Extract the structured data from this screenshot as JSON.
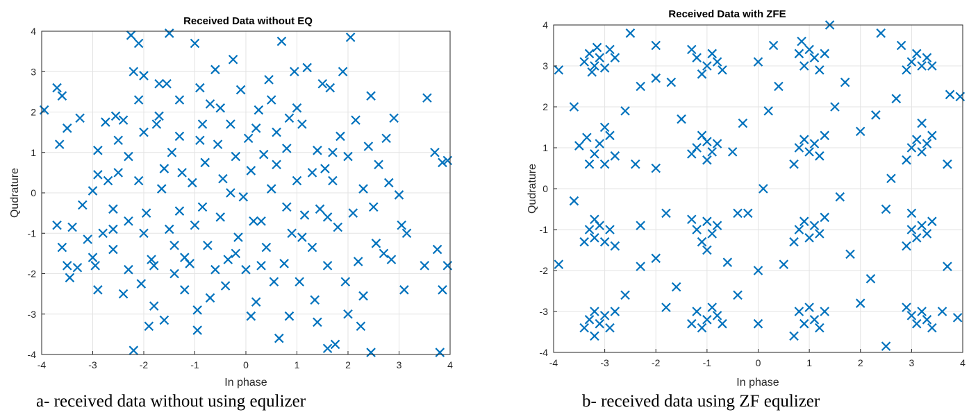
{
  "chart_data": [
    {
      "type": "scatter",
      "title": "Received Data without EQ",
      "xlabel": "In phase",
      "ylabel": "Qudrature",
      "xlim": [
        -4,
        4
      ],
      "ylim": [
        -4,
        4
      ],
      "xticks": [
        "-4",
        "-3",
        "-2",
        "-1",
        "0",
        "1",
        "2",
        "3",
        "4"
      ],
      "yticks": [
        "-4",
        "-3",
        "-2",
        "-1",
        "0",
        "1",
        "2",
        "3",
        "4"
      ],
      "grid": true,
      "marker": "x",
      "color": "#0072BD",
      "points": [
        [
          -3.95,
          2.05
        ],
        [
          -3.7,
          2.6
        ],
        [
          -3.6,
          2.4
        ],
        [
          -3.5,
          1.6
        ],
        [
          -3.65,
          1.2
        ],
        [
          -3.7,
          -0.8
        ],
        [
          -3.6,
          -1.35
        ],
        [
          -3.5,
          -1.8
        ],
        [
          -3.45,
          -2.1
        ],
        [
          -3.4,
          -0.85
        ],
        [
          -3.3,
          -1.85
        ],
        [
          -3.25,
          1.85
        ],
        [
          -3.2,
          -0.3
        ],
        [
          -3.1,
          -1.15
        ],
        [
          -3.0,
          0.05
        ],
        [
          -2.95,
          -1.8
        ],
        [
          -2.9,
          -2.4
        ],
        [
          -2.9,
          1.05
        ],
        [
          -2.8,
          -1.0
        ],
        [
          -2.75,
          1.75
        ],
        [
          -2.7,
          0.3
        ],
        [
          -2.6,
          -0.4
        ],
        [
          -2.6,
          -1.4
        ],
        [
          -2.55,
          1.9
        ],
        [
          -2.5,
          0.5
        ],
        [
          -2.5,
          1.3
        ],
        [
          -2.4,
          -2.5
        ],
        [
          -2.3,
          -1.9
        ],
        [
          -2.3,
          -0.7
        ],
        [
          -2.3,
          0.9
        ],
        [
          -2.25,
          3.9
        ],
        [
          -2.2,
          3.0
        ],
        [
          -2.2,
          -3.9
        ],
        [
          -2.1,
          3.7
        ],
        [
          -2.05,
          -2.25
        ],
        [
          -2.0,
          2.9
        ],
        [
          -2.0,
          1.5
        ],
        [
          -1.95,
          -0.5
        ],
        [
          -1.9,
          -3.3
        ],
        [
          -1.85,
          -1.65
        ],
        [
          -1.8,
          -2.8
        ],
        [
          -1.75,
          1.7
        ],
        [
          -1.7,
          2.7
        ],
        [
          -1.65,
          0.1
        ],
        [
          -1.6,
          -3.15
        ],
        [
          -1.55,
          2.7
        ],
        [
          -1.5,
          3.95
        ],
        [
          -1.45,
          1.0
        ],
        [
          -1.4,
          -1.3
        ],
        [
          -1.3,
          -0.45
        ],
        [
          -1.3,
          1.4
        ],
        [
          -1.25,
          0.5
        ],
        [
          -1.2,
          -2.4
        ],
        [
          -1.1,
          -1.75
        ],
        [
          -1.05,
          0.25
        ],
        [
          -1.0,
          3.7
        ],
        [
          -0.95,
          -3.4
        ],
        [
          -0.95,
          -2.9
        ],
        [
          -0.9,
          2.6
        ],
        [
          -0.85,
          1.7
        ],
        [
          -0.85,
          -0.35
        ],
        [
          -0.8,
          0.75
        ],
        [
          -0.75,
          -1.3
        ],
        [
          -0.7,
          2.2
        ],
        [
          -0.6,
          3.05
        ],
        [
          -0.55,
          1.2
        ],
        [
          -0.5,
          -0.6
        ],
        [
          -0.45,
          0.35
        ],
        [
          -0.4,
          -2.3
        ],
        [
          -0.35,
          -1.65
        ],
        [
          -0.3,
          1.7
        ],
        [
          -0.25,
          3.3
        ],
        [
          -0.2,
          0.9
        ],
        [
          -0.15,
          -1.1
        ],
        [
          -0.1,
          2.55
        ],
        [
          -0.05,
          -0.1
        ],
        [
          0.0,
          -1.9
        ],
        [
          0.05,
          1.35
        ],
        [
          0.1,
          0.55
        ],
        [
          0.15,
          -0.7
        ],
        [
          0.2,
          -2.7
        ],
        [
          0.25,
          2.05
        ],
        [
          0.3,
          -0.7
        ],
        [
          0.35,
          0.95
        ],
        [
          0.4,
          -1.35
        ],
        [
          0.45,
          2.8
        ],
        [
          0.5,
          0.1
        ],
        [
          0.55,
          -2.2
        ],
        [
          0.6,
          1.5
        ],
        [
          0.65,
          -3.6
        ],
        [
          0.7,
          3.75
        ],
        [
          0.75,
          -1.75
        ],
        [
          0.8,
          -0.35
        ],
        [
          0.85,
          -3.05
        ],
        [
          0.85,
          1.85
        ],
        [
          0.9,
          -1.0
        ],
        [
          0.95,
          3.0
        ],
        [
          1.0,
          0.3
        ],
        [
          1.05,
          -2.2
        ],
        [
          1.1,
          1.7
        ],
        [
          1.15,
          -0.55
        ],
        [
          1.2,
          3.1
        ],
        [
          1.3,
          -1.35
        ],
        [
          1.35,
          -2.65
        ],
        [
          1.4,
          1.05
        ],
        [
          1.45,
          -0.4
        ],
        [
          1.5,
          2.7
        ],
        [
          1.55,
          0.6
        ],
        [
          1.6,
          -3.85
        ],
        [
          1.6,
          -1.8
        ],
        [
          1.65,
          2.6
        ],
        [
          1.7,
          0.3
        ],
        [
          1.75,
          -3.75
        ],
        [
          1.8,
          -0.85
        ],
        [
          1.85,
          1.4
        ],
        [
          1.9,
          3.0
        ],
        [
          1.95,
          -2.2
        ],
        [
          2.0,
          0.9
        ],
        [
          2.05,
          3.85
        ],
        [
          2.1,
          -0.5
        ],
        [
          2.15,
          1.8
        ],
        [
          2.2,
          -1.7
        ],
        [
          2.25,
          -3.3
        ],
        [
          2.3,
          0.1
        ],
        [
          2.3,
          -2.55
        ],
        [
          2.4,
          1.15
        ],
        [
          2.45,
          -3.95
        ],
        [
          2.45,
          2.4
        ],
        [
          2.55,
          -1.25
        ],
        [
          2.6,
          0.7
        ],
        [
          2.7,
          -1.5
        ],
        [
          2.75,
          1.35
        ],
        [
          2.85,
          -1.65
        ],
        [
          2.9,
          1.85
        ],
        [
          3.0,
          -0.05
        ],
        [
          3.05,
          -0.8
        ],
        [
          3.1,
          -2.4
        ],
        [
          3.15,
          -1.0
        ],
        [
          3.5,
          -1.8
        ],
        [
          3.55,
          2.35
        ],
        [
          3.7,
          1.0
        ],
        [
          3.75,
          -1.4
        ],
        [
          3.8,
          -3.95
        ],
        [
          3.85,
          0.75
        ],
        [
          3.85,
          -2.4
        ],
        [
          3.95,
          0.8
        ],
        [
          3.95,
          -1.8
        ],
        [
          -2.0,
          -1.0
        ],
        [
          -1.8,
          -1.8
        ],
        [
          -1.5,
          -0.9
        ],
        [
          -1.2,
          -1.6
        ],
        [
          -1.6,
          0.6
        ],
        [
          -2.1,
          0.3
        ],
        [
          -1.0,
          -0.8
        ],
        [
          -0.6,
          -1.9
        ],
        [
          -0.9,
          1.3
        ],
        [
          -0.3,
          0.0
        ],
        [
          0.2,
          1.6
        ],
        [
          0.6,
          0.7
        ],
        [
          1.1,
          -1.1
        ],
        [
          1.3,
          0.5
        ],
        [
          0.8,
          1.1
        ],
        [
          1.7,
          1.0
        ],
        [
          1.6,
          -0.6
        ],
        [
          -0.2,
          -1.5
        ],
        [
          0.3,
          -1.8
        ],
        [
          -1.4,
          -2.0
        ],
        [
          -2.4,
          1.8
        ],
        [
          -2.1,
          2.3
        ],
        [
          -0.5,
          2.1
        ],
        [
          0.5,
          2.3
        ],
        [
          1.0,
          2.1
        ],
        [
          -3.0,
          -1.6
        ],
        [
          -2.6,
          -0.9
        ],
        [
          -2.9,
          0.45
        ],
        [
          2.8,
          0.25
        ],
        [
          2.5,
          -0.35
        ],
        [
          -1.7,
          1.9
        ],
        [
          -1.3,
          2.3
        ],
        [
          0.1,
          -3.05
        ],
        [
          -0.7,
          -2.6
        ],
        [
          1.4,
          -3.2
        ],
        [
          2.0,
          -3.0
        ]
      ]
    },
    {
      "type": "scatter",
      "title": "Received Data with ZFE",
      "xlabel": "In phase",
      "ylabel": "Qudrature",
      "xlim": [
        -4,
        4
      ],
      "ylim": [
        -4,
        4
      ],
      "xticks": [
        "-4",
        "-3",
        "-2",
        "-1",
        "0",
        "1",
        "2",
        "3",
        "4"
      ],
      "yticks": [
        "-4",
        "-3",
        "-2",
        "-1",
        "0",
        "1",
        "2",
        "3",
        "4"
      ],
      "grid": true,
      "marker": "x",
      "color": "#0072BD",
      "points": [
        [
          -3.9,
          2.9
        ],
        [
          -3.9,
          -1.85
        ],
        [
          -3.5,
          1.05
        ],
        [
          -3.4,
          3.1
        ],
        [
          -3.3,
          3.3
        ],
        [
          -3.2,
          3.0
        ],
        [
          -3.1,
          3.2
        ],
        [
          -3.0,
          2.95
        ],
        [
          -2.9,
          3.4
        ],
        [
          -2.8,
          3.2
        ],
        [
          -3.25,
          2.85
        ],
        [
          -3.15,
          3.45
        ],
        [
          -3.35,
          1.25
        ],
        [
          -3.2,
          0.85
        ],
        [
          -3.1,
          1.1
        ],
        [
          -3.0,
          0.6
        ],
        [
          -2.9,
          1.3
        ],
        [
          -3.3,
          0.6
        ],
        [
          -3.0,
          1.5
        ],
        [
          -2.8,
          0.8
        ],
        [
          -3.3,
          -1.0
        ],
        [
          -3.2,
          -1.2
        ],
        [
          -3.1,
          -0.9
        ],
        [
          -3.0,
          -1.3
        ],
        [
          -2.9,
          -1.0
        ],
        [
          -3.4,
          -1.3
        ],
        [
          -2.8,
          -1.4
        ],
        [
          -3.2,
          -0.75
        ],
        [
          -3.3,
          -3.2
        ],
        [
          -3.2,
          -3.0
        ],
        [
          -3.1,
          -3.3
        ],
        [
          -3.0,
          -3.1
        ],
        [
          -2.9,
          -3.4
        ],
        [
          -3.4,
          -3.4
        ],
        [
          -2.8,
          -3.0
        ],
        [
          -3.2,
          -3.6
        ],
        [
          -1.2,
          3.2
        ],
        [
          -1.0,
          3.0
        ],
        [
          -0.9,
          3.3
        ],
        [
          -1.1,
          2.8
        ],
        [
          -0.8,
          3.1
        ],
        [
          -1.3,
          3.4
        ],
        [
          -0.7,
          2.9
        ],
        [
          -1.2,
          1.0
        ],
        [
          -1.0,
          1.15
        ],
        [
          -0.9,
          0.9
        ],
        [
          -1.1,
          1.3
        ],
        [
          -0.8,
          1.1
        ],
        [
          -1.3,
          0.85
        ],
        [
          -1.0,
          0.7
        ],
        [
          -1.2,
          -1.0
        ],
        [
          -1.0,
          -0.8
        ],
        [
          -0.9,
          -1.1
        ],
        [
          -1.1,
          -1.3
        ],
        [
          -0.8,
          -0.9
        ],
        [
          -1.3,
          -0.75
        ],
        [
          -1.0,
          -1.5
        ],
        [
          -1.2,
          -3.0
        ],
        [
          -1.0,
          -3.2
        ],
        [
          -0.9,
          -2.9
        ],
        [
          -1.1,
          -3.4
        ],
        [
          -0.8,
          -3.1
        ],
        [
          -1.3,
          -3.3
        ],
        [
          -0.7,
          -3.3
        ],
        [
          0.8,
          3.3
        ],
        [
          0.9,
          3.0
        ],
        [
          1.0,
          3.4
        ],
        [
          1.1,
          3.2
        ],
        [
          1.2,
          2.9
        ],
        [
          1.3,
          3.3
        ],
        [
          0.85,
          3.6
        ],
        [
          0.8,
          1.0
        ],
        [
          0.9,
          1.2
        ],
        [
          1.0,
          0.9
        ],
        [
          1.1,
          1.1
        ],
        [
          1.2,
          0.8
        ],
        [
          1.3,
          1.3
        ],
        [
          0.7,
          0.6
        ],
        [
          0.8,
          -1.0
        ],
        [
          0.9,
          -0.8
        ],
        [
          1.0,
          -1.2
        ],
        [
          1.1,
          -0.9
        ],
        [
          1.2,
          -1.1
        ],
        [
          1.3,
          -0.7
        ],
        [
          0.7,
          -1.3
        ],
        [
          0.8,
          -3.0
        ],
        [
          0.9,
          -3.3
        ],
        [
          1.0,
          -2.9
        ],
        [
          1.1,
          -3.2
        ],
        [
          1.2,
          -3.4
        ],
        [
          1.3,
          -3.0
        ],
        [
          0.7,
          -3.6
        ],
        [
          3.0,
          3.1
        ],
        [
          3.1,
          3.3
        ],
        [
          3.2,
          3.0
        ],
        [
          3.3,
          3.2
        ],
        [
          2.9,
          2.9
        ],
        [
          3.4,
          3.0
        ],
        [
          2.8,
          3.5
        ],
        [
          3.0,
          1.0
        ],
        [
          3.1,
          1.2
        ],
        [
          3.2,
          0.9
        ],
        [
          3.3,
          1.1
        ],
        [
          2.9,
          0.7
        ],
        [
          3.4,
          1.3
        ],
        [
          3.2,
          1.6
        ],
        [
          3.0,
          -1.0
        ],
        [
          3.1,
          -1.2
        ],
        [
          3.2,
          -0.9
        ],
        [
          3.3,
          -1.1
        ],
        [
          2.9,
          -1.4
        ],
        [
          3.4,
          -0.8
        ],
        [
          3.0,
          -0.6
        ],
        [
          3.0,
          -3.1
        ],
        [
          3.1,
          -3.3
        ],
        [
          3.2,
          -3.0
        ],
        [
          3.3,
          -3.2
        ],
        [
          2.9,
          -2.9
        ],
        [
          3.4,
          -3.4
        ],
        [
          3.6,
          -3.0
        ],
        [
          3.9,
          -3.15
        ],
        [
          3.75,
          2.3
        ],
        [
          3.95,
          2.25
        ],
        [
          -2.5,
          3.8
        ],
        [
          -2.0,
          3.5
        ],
        [
          -1.7,
          2.6
        ],
        [
          -2.3,
          2.5
        ],
        [
          -2.6,
          -2.6
        ],
        [
          -2.3,
          -1.9
        ],
        [
          -2.0,
          -1.7
        ],
        [
          -1.8,
          -2.9
        ],
        [
          -2.3,
          -0.9
        ],
        [
          -2.0,
          0.5
        ],
        [
          -1.8,
          -0.6
        ],
        [
          -1.5,
          1.7
        ],
        [
          -0.5,
          0.9
        ],
        [
          -0.4,
          -0.6
        ],
        [
          -0.2,
          -0.6
        ],
        [
          0.0,
          -2.0
        ],
        [
          0.2,
          1.9
        ],
        [
          0.3,
          3.5
        ],
        [
          0.1,
          0.0
        ],
        [
          0.5,
          -1.85
        ],
        [
          1.5,
          2.0
        ],
        [
          1.4,
          4.0
        ],
        [
          1.8,
          -1.6
        ],
        [
          2.0,
          1.4
        ],
        [
          2.2,
          -2.2
        ],
        [
          2.4,
          3.8
        ],
        [
          2.5,
          -3.85
        ],
        [
          2.6,
          0.25
        ],
        [
          2.7,
          2.2
        ],
        [
          2.5,
          -0.5
        ],
        [
          -1.6,
          -2.4
        ],
        [
          -0.4,
          -2.6
        ],
        [
          0.4,
          2.5
        ],
        [
          1.7,
          2.6
        ],
        [
          -0.3,
          1.6
        ],
        [
          2.3,
          1.8
        ],
        [
          -2.4,
          0.6
        ],
        [
          -2.6,
          1.9
        ],
        [
          -0.6,
          -1.8
        ],
        [
          1.6,
          -0.2
        ],
        [
          -3.6,
          2.0
        ],
        [
          3.7,
          0.6
        ],
        [
          -3.6,
          -0.3
        ],
        [
          3.7,
          -1.9
        ],
        [
          0.0,
          3.1
        ],
        [
          0.0,
          -3.3
        ],
        [
          2.0,
          -2.8
        ],
        [
          -2.0,
          2.7
        ]
      ]
    }
  ],
  "captions": {
    "a": "a- received data without using equlizer",
    "b": "b- received data using ZF equlizer"
  }
}
